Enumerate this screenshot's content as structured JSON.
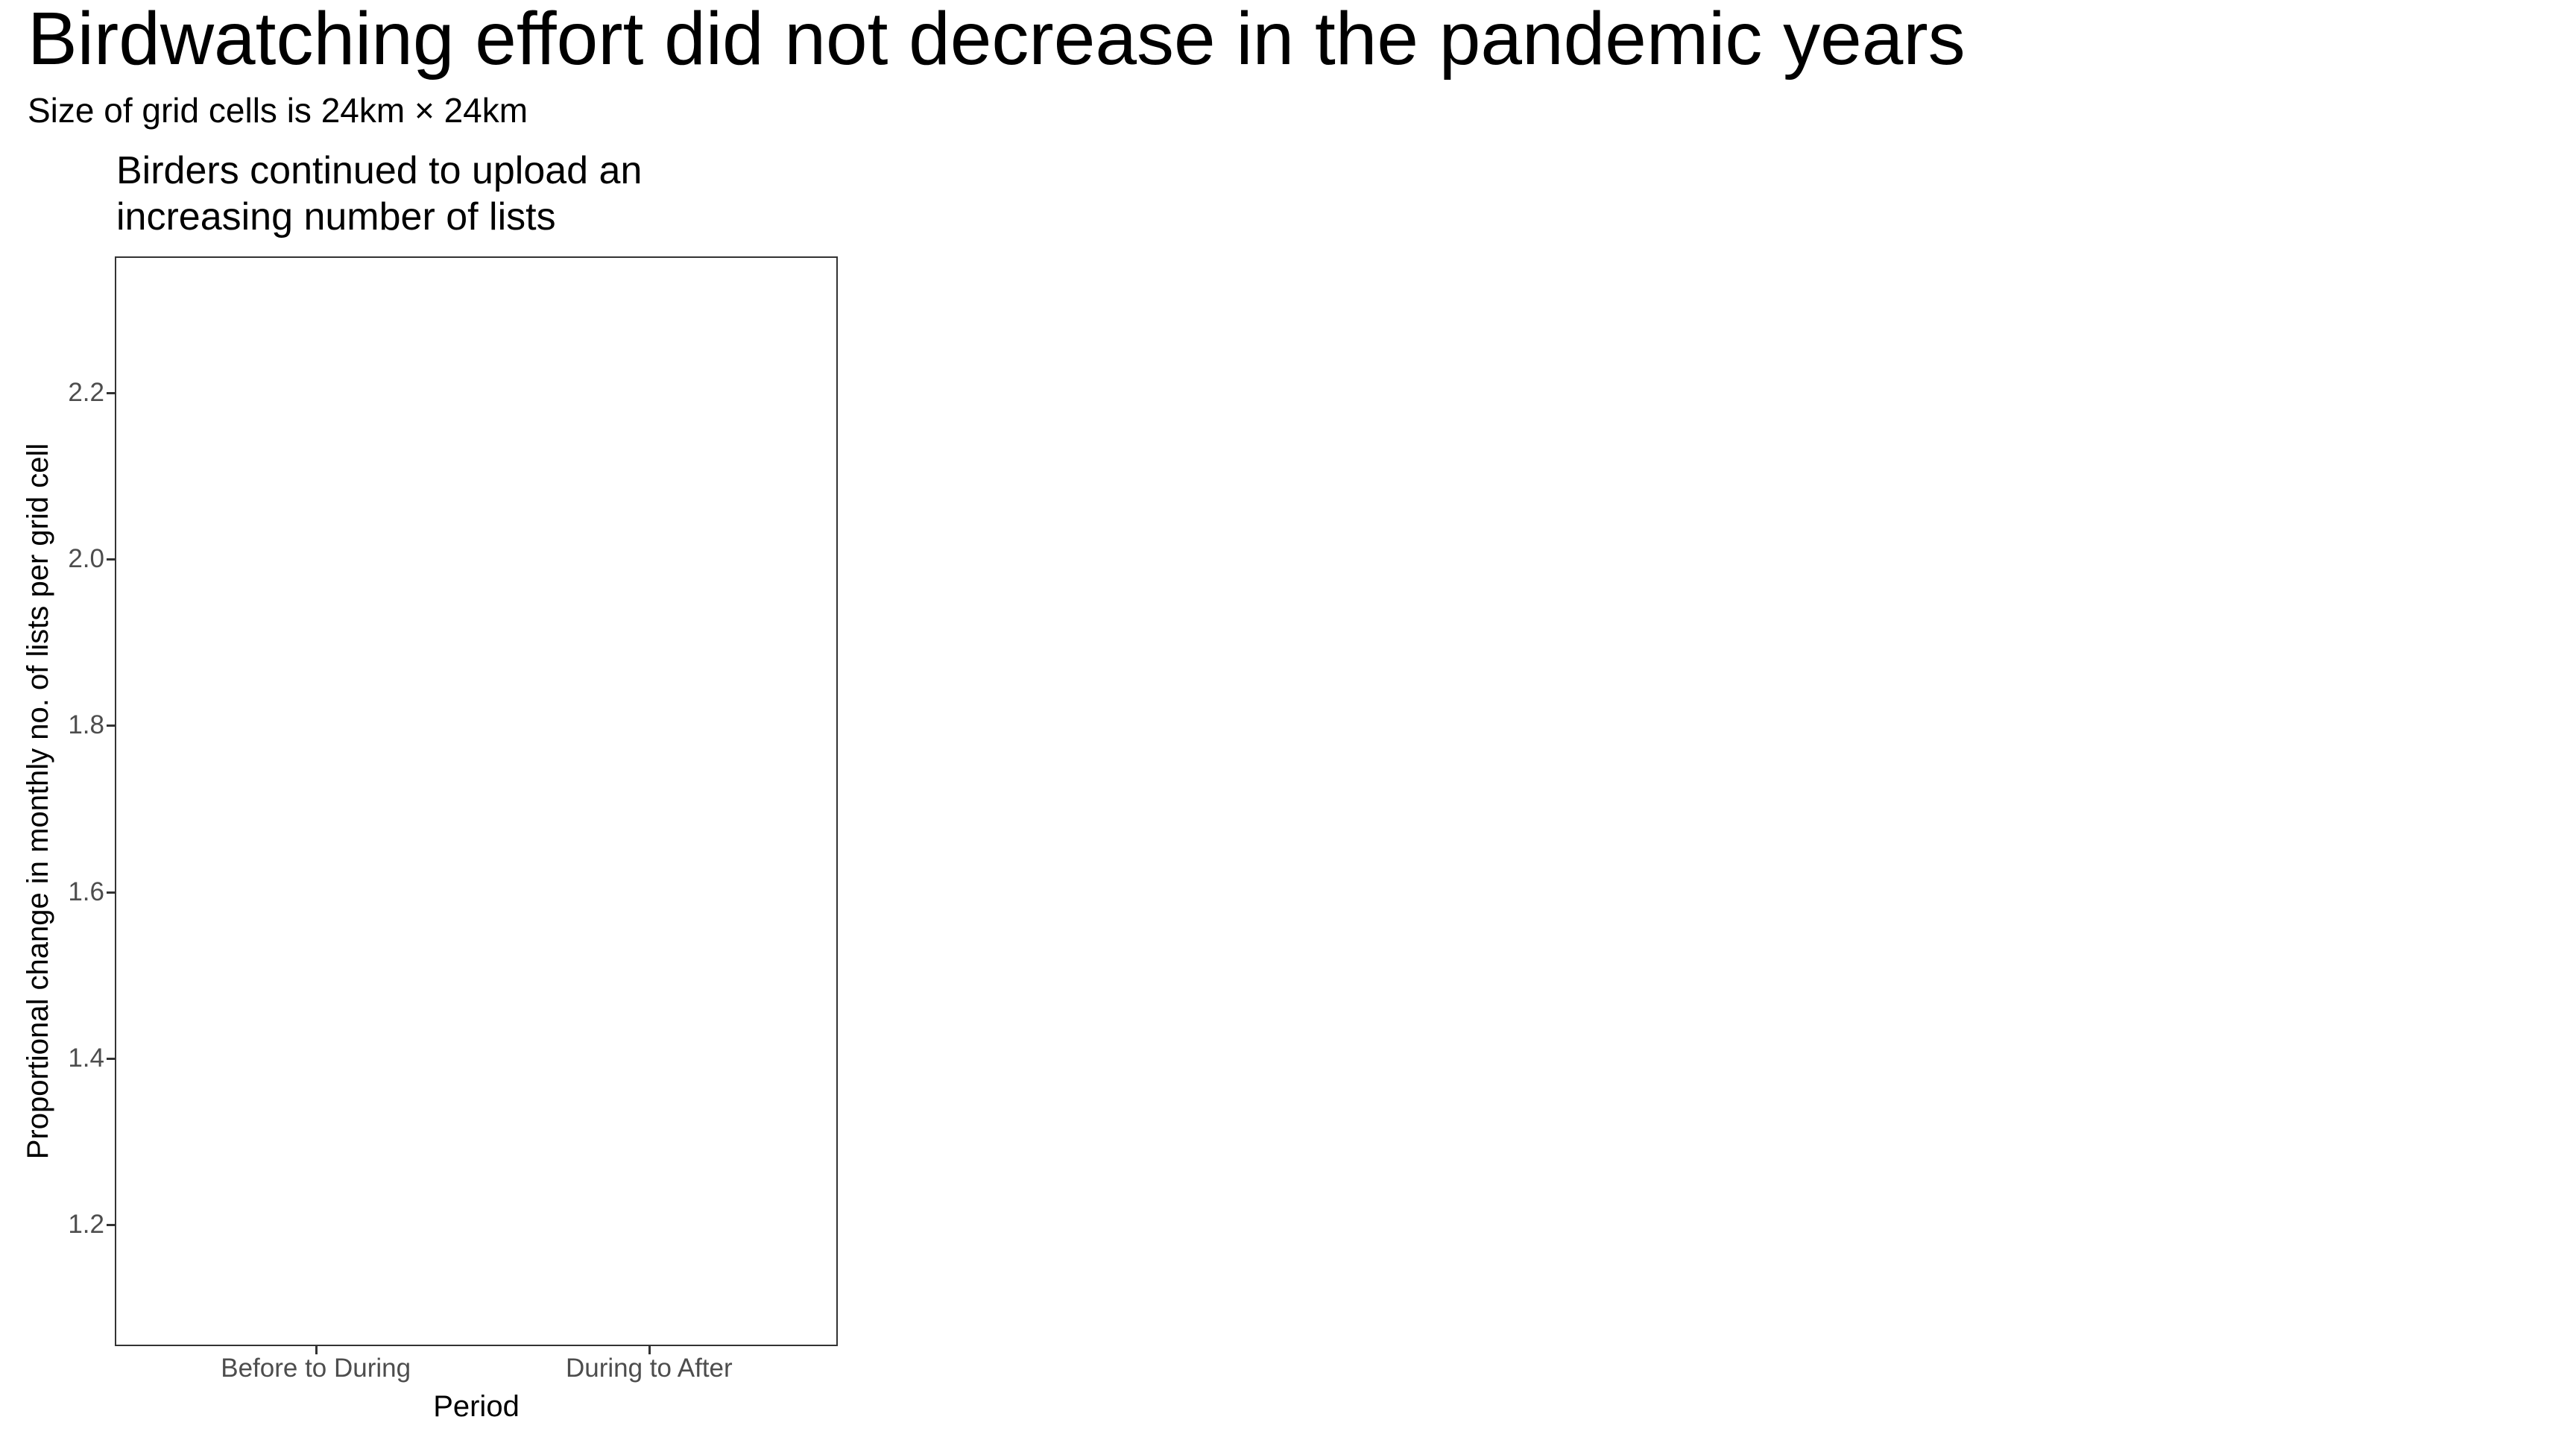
{
  "header": {
    "title": "Birdwatching effort did not decrease in the pandemic years",
    "subtitle": "Size of grid cells is 24km × 24km"
  },
  "chart_data": {
    "type": "scatter",
    "panel_title": "Birders continued to upload an\nincreasing number of lists",
    "xlabel": "Period",
    "ylabel": "Proportional change in monthly no. of lists per grid cell",
    "x_categories": [
      "Before to During",
      "During to After"
    ],
    "yticks": [
      {
        "label": "2.2",
        "value": 2.2
      },
      {
        "label": "2.0",
        "value": 2.0
      },
      {
        "label": "1.8",
        "value": 1.8
      },
      {
        "label": "1.6",
        "value": 1.6
      },
      {
        "label": "1.4",
        "value": 1.4
      },
      {
        "label": "1.2",
        "value": 1.2
      }
    ],
    "ylim": [
      1.054,
      2.364
    ],
    "grid": false,
    "legend": null,
    "series": []
  },
  "colors": {
    "background": "#ffffff",
    "title_text": "#000000",
    "axis_title_text": "#000000",
    "axis_tick_text": "#4d4d4d",
    "tick_mark": "#333333",
    "panel_border": "#333333",
    "panel_fill": "#ffffff"
  }
}
